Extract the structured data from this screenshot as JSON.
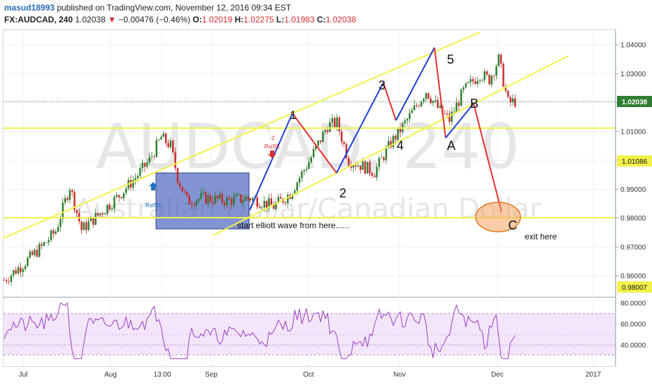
{
  "header": {
    "username": "masud18993",
    "published": " published on TradingView.com, November 12, 2016 09:34 EST",
    "symbol": "FX:AUDCAD, 240",
    "last": "1.02038",
    "change": "−0.00476 (−0.46%)",
    "o_label": "O:",
    "o_val": "1.02019",
    "h_label": "H:",
    "h_val": "1.02275",
    "l_label": "L:",
    "l_val": "1.01983",
    "c_label": "C:",
    "c_val": "1.02038"
  },
  "watermark": {
    "ticker": "AUDCAD, 240",
    "name": "Australian Dollar/Canadian Dollar"
  },
  "annotations": {
    "start": "start elliott wave from here......",
    "exit": "exit here",
    "rsi_small": "-2",
    "rsi_label": "RsiSE",
    "rsi_left": "RsiSE"
  },
  "colors": {
    "up": "#2b7a2b",
    "down": "#c62828",
    "trendline": "#f2f24a",
    "wave_blue": "#1f3fd8",
    "wave_red": "#e53030",
    "rsi": "#9b3fc0",
    "rsi_band": "#f3e6fb",
    "last_label": "#2e7d32",
    "box": "#3f5bb8",
    "ellipse_fill": "#f6a35e",
    "ellipse_stroke": "#e07a1c"
  },
  "chart_data": {
    "type": "candlestick",
    "title": "FX:AUDCAD, 240",
    "price_axis": {
      "ticks": [
        "1.04000",
        "1.03000",
        "1.02000",
        "1.01000",
        "1.00000",
        "0.99000",
        "0.98000",
        "0.97000",
        "0.96000"
      ],
      "highlighted": [
        "1.02038",
        "1.01086",
        "0.98007"
      ]
    },
    "x_axis": {
      "ticks": [
        "Jul",
        "Aug",
        "13:00",
        "Sep",
        "Oct",
        "Nov",
        "Dec",
        "2017"
      ]
    },
    "rsi": {
      "ticks": [
        "80.0000",
        "60.0000",
        "40.0000"
      ],
      "band": [
        30,
        70
      ]
    },
    "price_path_anchors": [
      {
        "x": 0,
        "y": 0.9585
      },
      {
        "x": 8,
        "y": 0.964
      },
      {
        "x": 16,
        "y": 0.97
      },
      {
        "x": 22,
        "y": 0.9755
      },
      {
        "x": 28,
        "y": 0.991
      },
      {
        "x": 33,
        "y": 0.976
      },
      {
        "x": 40,
        "y": 0.981
      },
      {
        "x": 48,
        "y": 0.987
      },
      {
        "x": 56,
        "y": 0.994
      },
      {
        "x": 62,
        "y": 1.0
      },
      {
        "x": 67,
        "y": 1.008
      },
      {
        "x": 71,
        "y": 1.005
      },
      {
        "x": 74,
        "y": 0.994
      },
      {
        "x": 78,
        "y": 0.986
      },
      {
        "x": 85,
        "y": 0.987
      },
      {
        "x": 95,
        "y": 0.986
      },
      {
        "x": 105,
        "y": 0.987
      },
      {
        "x": 115,
        "y": 0.984
      },
      {
        "x": 122,
        "y": 0.9885
      },
      {
        "x": 130,
        "y": 0.9995
      },
      {
        "x": 138,
        "y": 1.012
      },
      {
        "x": 142,
        "y": 1.013
      },
      {
        "x": 147,
        "y": 1.0
      },
      {
        "x": 153,
        "y": 0.998
      },
      {
        "x": 158,
        "y": 0.996
      },
      {
        "x": 165,
        "y": 1.006
      },
      {
        "x": 172,
        "y": 1.014
      },
      {
        "x": 180,
        "y": 1.024
      },
      {
        "x": 186,
        "y": 1.017
      },
      {
        "x": 190,
        "y": 1.014
      },
      {
        "x": 196,
        "y": 1.024
      },
      {
        "x": 203,
        "y": 1.03
      },
      {
        "x": 207,
        "y": 1.028
      },
      {
        "x": 211,
        "y": 1.035
      },
      {
        "x": 215,
        "y": 1.02
      },
      {
        "x": 218,
        "y": 1.0204
      }
    ],
    "elliott_waves": [
      {
        "label": "1",
        "x": 142,
        "y": 1.013
      },
      {
        "label": "2",
        "x": 158,
        "y": 0.996
      },
      {
        "label": "3",
        "x": 186,
        "y": 1.026
      },
      {
        "label": "4",
        "x": 193,
        "y": 1.0135
      },
      {
        "label": "5",
        "x": 215,
        "y": 1.038
      },
      {
        "label": "A",
        "x": 223,
        "y": 1.008
      },
      {
        "label": "B",
        "x": 235,
        "y": 1.019
      },
      {
        "label": "C",
        "x": 250,
        "y": 0.98
      }
    ],
    "horizontal_levels": [
      1.011,
      0.98
    ],
    "last_price": 1.02038
  }
}
